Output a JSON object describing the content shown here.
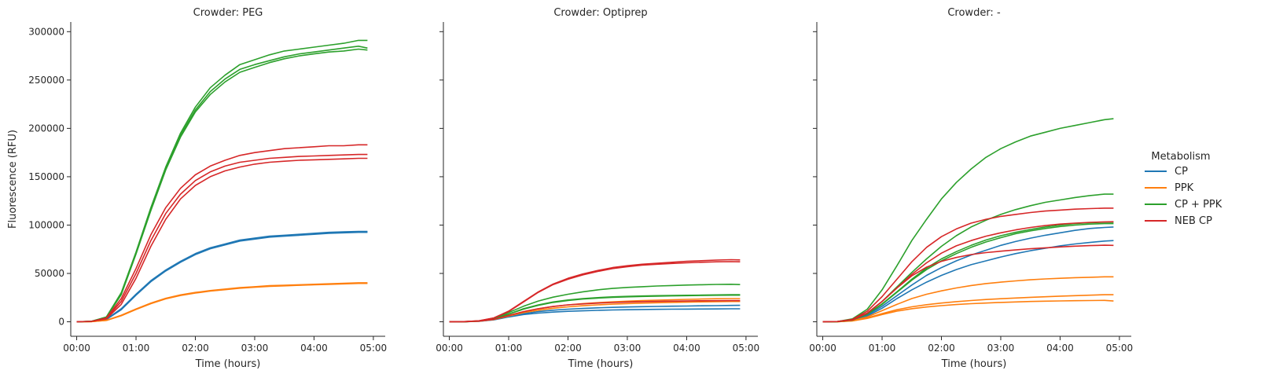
{
  "colors": {
    "CP": "#1f77b4",
    "PPK": "#ff7f0e",
    "CP + PPK": "#2ca02c",
    "NEB CP": "#d62728"
  },
  "legend": {
    "title": "Metabolism",
    "placement": "right",
    "entries": [
      "CP",
      "PPK",
      "CP + PPK",
      "NEB CP"
    ]
  },
  "chart_data": [
    {
      "type": "line",
      "title": "Crowder: PEG",
      "xlabel": "Time (hours)",
      "ylabel": "Fluorescence (RFU)",
      "xlim": [
        -0.1,
        5.2
      ],
      "ylim": [
        -15000,
        310000
      ],
      "xticks": [
        "00:00",
        "01:00",
        "02:00",
        "03:00",
        "04:00",
        "05:00"
      ],
      "xtick_values": [
        0,
        1,
        2,
        3,
        4,
        5
      ],
      "yticks": [
        "0",
        "50000",
        "100000",
        "150000",
        "200000",
        "250000",
        "300000"
      ],
      "ytick_values": [
        0,
        50000,
        100000,
        150000,
        200000,
        250000,
        300000
      ],
      "x": [
        0,
        0.25,
        0.5,
        0.75,
        1,
        1.25,
        1.5,
        1.75,
        2,
        2.25,
        2.5,
        2.75,
        3,
        3.25,
        3.5,
        3.75,
        4,
        4.25,
        4.5,
        4.75,
        4.9
      ],
      "series": [
        {
          "name": "CP",
          "values": [
            0,
            300,
            2500,
            13000,
            28000,
            42000,
            53000,
            62000,
            70000,
            76000,
            80000,
            84000,
            86000,
            88000,
            89000,
            90000,
            91000,
            92000,
            92500,
            93000,
            93000
          ]
        },
        {
          "name": "CP",
          "values": [
            0,
            300,
            2600,
            13500,
            28500,
            42500,
            53500,
            62500,
            70500,
            76500,
            80500,
            84500,
            86500,
            88500,
            89500,
            90500,
            91500,
            92500,
            93000,
            93500,
            93500
          ]
        },
        {
          "name": "CP",
          "values": [
            0,
            300,
            2400,
            12500,
            27500,
            41500,
            52500,
            61500,
            69500,
            75500,
            79500,
            83500,
            85500,
            87500,
            88500,
            89500,
            90500,
            91500,
            92000,
            92500,
            92500
          ]
        },
        {
          "name": "PPK",
          "values": [
            0,
            200,
            1500,
            6500,
            13000,
            19000,
            24000,
            27500,
            30000,
            32000,
            33500,
            35000,
            36000,
            37000,
            37500,
            38000,
            38500,
            39000,
            39500,
            40000,
            40000
          ]
        },
        {
          "name": "PPK",
          "values": [
            0,
            200,
            1600,
            6800,
            13300,
            19300,
            24300,
            27800,
            30300,
            32300,
            33800,
            35300,
            36300,
            37300,
            37800,
            38300,
            38800,
            39300,
            39800,
            40300,
            40300
          ]
        },
        {
          "name": "PPK",
          "values": [
            0,
            200,
            1400,
            6200,
            12700,
            18700,
            23700,
            27200,
            29700,
            31700,
            33200,
            34700,
            35700,
            36700,
            37200,
            37700,
            38200,
            38700,
            39200,
            39700,
            39700
          ]
        },
        {
          "name": "CP + PPK",
          "values": [
            0,
            500,
            5000,
            30000,
            72000,
            118000,
            160000,
            195000,
            222000,
            242000,
            255000,
            266000,
            271000,
            276000,
            280000,
            282000,
            284000,
            286000,
            288000,
            291000,
            291000
          ]
        },
        {
          "name": "CP + PPK",
          "values": [
            0,
            500,
            4800,
            29000,
            71000,
            116000,
            158000,
            193000,
            219000,
            238000,
            251000,
            261000,
            266000,
            270000,
            274000,
            277000,
            279000,
            281000,
            283000,
            285000,
            283000
          ]
        },
        {
          "name": "CP + PPK",
          "values": [
            0,
            500,
            4600,
            28000,
            70000,
            115000,
            157000,
            191000,
            217000,
            235000,
            248000,
            258000,
            263000,
            268000,
            272000,
            275000,
            277000,
            279000,
            280000,
            282000,
            281000
          ]
        },
        {
          "name": "NEB CP",
          "values": [
            0,
            400,
            4000,
            24000,
            55000,
            90000,
            118000,
            138000,
            152000,
            161000,
            167000,
            172000,
            175000,
            177000,
            179000,
            180000,
            181000,
            182000,
            182000,
            183000,
            183000
          ]
        },
        {
          "name": "NEB CP",
          "values": [
            0,
            400,
            3500,
            21000,
            50000,
            84000,
            112000,
            132000,
            146000,
            155000,
            161000,
            165000,
            167000,
            169000,
            170000,
            171000,
            171500,
            172000,
            172500,
            173000,
            173000
          ]
        },
        {
          "name": "NEB CP",
          "values": [
            0,
            400,
            3000,
            18000,
            45000,
            78000,
            106000,
            127000,
            141000,
            150000,
            156000,
            160000,
            163000,
            165000,
            166000,
            167000,
            167500,
            168000,
            168500,
            169000,
            169000
          ]
        }
      ]
    },
    {
      "type": "line",
      "title": "Crowder: Optiprep",
      "xlabel": "Time (hours)",
      "ylabel": "",
      "xlim": [
        -0.1,
        5.2
      ],
      "ylim": [
        -15000,
        310000
      ],
      "xticks": [
        "00:00",
        "01:00",
        "02:00",
        "03:00",
        "04:00",
        "05:00"
      ],
      "xtick_values": [
        0,
        1,
        2,
        3,
        4,
        5
      ],
      "yticks": [],
      "ytick_values": [
        0,
        50000,
        100000,
        150000,
        200000,
        250000,
        300000
      ],
      "x": [
        0,
        0.25,
        0.5,
        0.75,
        1,
        1.25,
        1.5,
        1.75,
        2,
        2.25,
        2.5,
        2.75,
        3,
        3.25,
        3.5,
        3.75,
        4,
        4.25,
        4.5,
        4.75,
        4.9
      ],
      "series": [
        {
          "name": "CP",
          "values": [
            0,
            100,
            500,
            2000,
            5000,
            7500,
            9000,
            10000,
            10800,
            11300,
            11800,
            12200,
            12500,
            12700,
            12900,
            13000,
            13100,
            13200,
            13300,
            13400,
            13400
          ]
        },
        {
          "name": "CP",
          "values": [
            0,
            100,
            600,
            2200,
            5500,
            8500,
            10500,
            12000,
            13000,
            13800,
            14400,
            14900,
            15300,
            15600,
            15900,
            16100,
            16300,
            16500,
            16700,
            16900,
            17000
          ]
        },
        {
          "name": "PPK",
          "values": [
            0,
            100,
            600,
            2300,
            6000,
            9500,
            12000,
            14000,
            15500,
            16600,
            17500,
            18200,
            18800,
            19300,
            19700,
            20000,
            20300,
            20600,
            20800,
            21000,
            21000
          ]
        },
        {
          "name": "PPK",
          "values": [
            0,
            100,
            700,
            2500,
            6500,
            10500,
            13500,
            15800,
            17500,
            18800,
            19800,
            20600,
            21300,
            21900,
            22400,
            22800,
            23200,
            23500,
            23800,
            24000,
            24000
          ]
        },
        {
          "name": "CP + PPK",
          "values": [
            0,
            100,
            800,
            3000,
            8000,
            13500,
            17500,
            20500,
            22500,
            24000,
            25000,
            25800,
            26300,
            26700,
            27000,
            27200,
            27400,
            27600,
            27800,
            28000,
            28000
          ]
        },
        {
          "name": "CP + PPK",
          "values": [
            0,
            100,
            800,
            3000,
            8000,
            13000,
            17000,
            20000,
            22000,
            23500,
            24500,
            25300,
            25800,
            26200,
            26500,
            26800,
            27000,
            27200,
            27400,
            27500,
            27500
          ]
        },
        {
          "name": "CP + PPK",
          "values": [
            0,
            100,
            900,
            3500,
            9500,
            16000,
            21500,
            25500,
            28500,
            31000,
            33000,
            34500,
            35500,
            36300,
            37000,
            37500,
            38000,
            38300,
            38600,
            38800,
            38500
          ]
        },
        {
          "name": "NEB CP",
          "values": [
            0,
            200,
            1000,
            4000,
            11000,
            21000,
            31000,
            39000,
            45000,
            49500,
            53000,
            56000,
            58000,
            59500,
            60500,
            61500,
            62500,
            63200,
            63800,
            64200,
            64000
          ]
        },
        {
          "name": "NEB CP",
          "values": [
            0,
            200,
            1000,
            4000,
            10500,
            20500,
            30500,
            38500,
            44000,
            48500,
            52000,
            55000,
            57000,
            58500,
            59500,
            60300,
            61000,
            61500,
            62000,
            62200,
            62000
          ]
        },
        {
          "name": "NEB CP",
          "values": [
            0,
            100,
            700,
            2500,
            6500,
            10500,
            13500,
            15800,
            17500,
            18500,
            19300,
            19900,
            20400,
            20800,
            21100,
            21300,
            21500,
            21700,
            21800,
            21900,
            21900
          ]
        }
      ]
    },
    {
      "type": "line",
      "title": "Crowder: -",
      "xlabel": "Time (hours)",
      "ylabel": "",
      "xlim": [
        -0.1,
        5.2
      ],
      "ylim": [
        -15000,
        310000
      ],
      "xticks": [
        "00:00",
        "01:00",
        "02:00",
        "03:00",
        "04:00",
        "05:00"
      ],
      "xtick_values": [
        0,
        1,
        2,
        3,
        4,
        5
      ],
      "yticks": [],
      "ytick_values": [
        0,
        50000,
        100000,
        150000,
        200000,
        250000,
        300000
      ],
      "x": [
        0,
        0.25,
        0.5,
        0.75,
        1,
        1.25,
        1.5,
        1.75,
        2,
        2.25,
        2.5,
        2.75,
        3,
        3.25,
        3.5,
        3.75,
        4,
        4.25,
        4.5,
        4.75,
        4.9
      ],
      "series": [
        {
          "name": "CP",
          "values": [
            0,
            200,
            1500,
            6000,
            14000,
            24000,
            33000,
            41000,
            48000,
            54000,
            59000,
            63000,
            67000,
            70500,
            73500,
            76000,
            78500,
            80500,
            82000,
            83500,
            84000
          ]
        },
        {
          "name": "CP",
          "values": [
            0,
            200,
            1700,
            7000,
            16000,
            27000,
            38000,
            48000,
            56000,
            63000,
            69000,
            74000,
            79000,
            83000,
            86500,
            89500,
            92000,
            94500,
            96500,
            97500,
            98000
          ]
        },
        {
          "name": "PPK",
          "values": [
            0,
            100,
            900,
            3500,
            7500,
            11000,
            13500,
            15300,
            16700,
            17800,
            18700,
            19400,
            20000,
            20500,
            21000,
            21300,
            21600,
            21800,
            22000,
            22100,
            21500
          ]
        },
        {
          "name": "PPK",
          "values": [
            0,
            100,
            1000,
            4000,
            8500,
            12500,
            15500,
            17700,
            19400,
            20800,
            22000,
            23000,
            23800,
            24600,
            25300,
            25900,
            26500,
            27000,
            27500,
            28000,
            28000
          ]
        },
        {
          "name": "PPK",
          "values": [
            0,
            150,
            1200,
            5000,
            11500,
            18000,
            24000,
            28500,
            32000,
            35000,
            37500,
            39500,
            41000,
            42300,
            43400,
            44300,
            45000,
            45600,
            46000,
            46500,
            46500
          ]
        },
        {
          "name": "CP + PPK",
          "values": [
            0,
            300,
            3000,
            13000,
            33000,
            58000,
            84000,
            106000,
            127000,
            144000,
            158000,
            170000,
            179000,
            186000,
            192000,
            196000,
            200000,
            203000,
            206000,
            209000,
            210000
          ]
        },
        {
          "name": "CP + PPK",
          "values": [
            0,
            250,
            2000,
            9000,
            21000,
            36000,
            51000,
            65000,
            78000,
            89000,
            98000,
            105000,
            111000,
            116000,
            120000,
            123500,
            126000,
            128500,
            130500,
            132000,
            132000
          ]
        },
        {
          "name": "CP + PPK",
          "values": [
            0,
            200,
            1800,
            8000,
            18500,
            31000,
            44000,
            55500,
            65000,
            72500,
            79000,
            84500,
            89000,
            92500,
            95500,
            98000,
            100000,
            101500,
            102500,
            103000,
            103000
          ]
        },
        {
          "name": "CP + PPK",
          "values": [
            0,
            200,
            1800,
            7800,
            18000,
            30500,
            43000,
            54000,
            63000,
            70500,
            77000,
            82500,
            87000,
            91000,
            94000,
            96500,
            98500,
            100000,
            101000,
            101500,
            101500
          ]
        },
        {
          "name": "NEB CP",
          "values": [
            0,
            300,
            2500,
            11000,
            26000,
            44000,
            62000,
            77000,
            88000,
            96000,
            102000,
            106000,
            109000,
            111000,
            113000,
            114500,
            115500,
            116500,
            117000,
            117500,
            117500
          ]
        },
        {
          "name": "NEB CP",
          "values": [
            0,
            250,
            2000,
            9000,
            21000,
            35000,
            49000,
            61000,
            71000,
            78500,
            84000,
            88500,
            92000,
            95000,
            97500,
            99500,
            101000,
            102000,
            102800,
            103300,
            103500
          ]
        },
        {
          "name": "NEB CP",
          "values": [
            0,
            250,
            2000,
            9000,
            21000,
            35000,
            47500,
            56500,
            62500,
            66500,
            69500,
            71500,
            73000,
            74300,
            75500,
            76500,
            77400,
            78200,
            78800,
            79200,
            79000
          ]
        }
      ]
    }
  ]
}
